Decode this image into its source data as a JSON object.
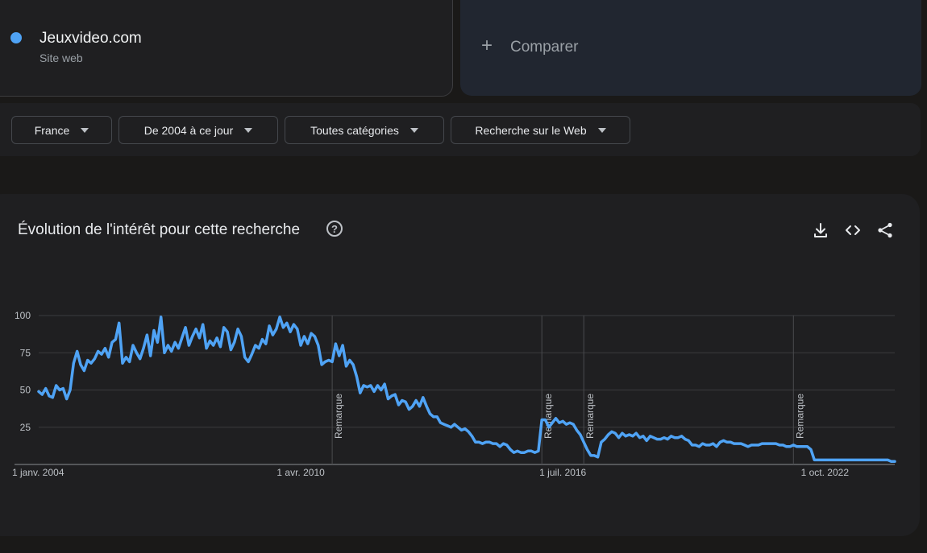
{
  "term": {
    "name": "Jeuxvideo.com",
    "type": "Site web",
    "color": "#4fa3f5"
  },
  "compare": {
    "plus": "+",
    "label": "Comparer"
  },
  "filters": {
    "region": "France",
    "period": "De 2004 à ce jour",
    "category": "Toutes catégories",
    "search_type": "Recherche sur le Web"
  },
  "chart_panel": {
    "title": "Évolution de l'intérêt pour cette recherche",
    "help": "?",
    "icons": [
      "download-icon",
      "embed-icon",
      "share-icon"
    ]
  },
  "chart_data": {
    "type": "line",
    "title": "Évolution de l'intérêt pour cette recherche",
    "xlabel": "",
    "ylabel": "",
    "ylim": [
      0,
      100
    ],
    "yticks": [
      100,
      75,
      50,
      25
    ],
    "xlim": [
      "2004-01",
      "2024-06"
    ],
    "xticks": [
      {
        "date": "2004-01",
        "label": "1 janv. 2004"
      },
      {
        "date": "2010-04",
        "label": "1 avr. 2010"
      },
      {
        "date": "2016-07",
        "label": "1 juil. 2016"
      },
      {
        "date": "2022-10",
        "label": "1 oct. 2022"
      }
    ],
    "annotations": [
      {
        "date": "2011-01",
        "label": "Remarque"
      },
      {
        "date": "2016-01",
        "label": "Remarque"
      },
      {
        "date": "2017-01",
        "label": "Remarque"
      },
      {
        "date": "2022-01",
        "label": "Remarque"
      }
    ],
    "grid": true,
    "color": "#4fa3f5",
    "series": [
      {
        "points": [
          [
            "2004-01",
            49
          ],
          [
            "2004-02",
            47
          ],
          [
            "2004-03",
            51
          ],
          [
            "2004-04",
            46
          ],
          [
            "2004-05",
            45
          ],
          [
            "2004-06",
            53
          ],
          [
            "2004-07",
            50
          ],
          [
            "2004-08",
            51
          ],
          [
            "2004-09",
            44
          ],
          [
            "2004-10",
            50
          ],
          [
            "2004-11",
            68
          ],
          [
            "2004-12",
            76
          ],
          [
            "2005-01",
            67
          ],
          [
            "2005-02",
            63
          ],
          [
            "2005-03",
            70
          ],
          [
            "2005-04",
            68
          ],
          [
            "2005-05",
            71
          ],
          [
            "2005-06",
            76
          ],
          [
            "2005-07",
            74
          ],
          [
            "2005-08",
            78
          ],
          [
            "2005-09",
            72
          ],
          [
            "2005-10",
            82
          ],
          [
            "2005-11",
            84
          ],
          [
            "2005-12",
            95
          ],
          [
            "2006-01",
            68
          ],
          [
            "2006-02",
            72
          ],
          [
            "2006-03",
            69
          ],
          [
            "2006-04",
            80
          ],
          [
            "2006-05",
            75
          ],
          [
            "2006-06",
            71
          ],
          [
            "2006-07",
            78
          ],
          [
            "2006-08",
            87
          ],
          [
            "2006-09",
            73
          ],
          [
            "2006-10",
            90
          ],
          [
            "2006-11",
            82
          ],
          [
            "2006-12",
            99
          ],
          [
            "2007-01",
            75
          ],
          [
            "2007-02",
            80
          ],
          [
            "2007-03",
            76
          ],
          [
            "2007-04",
            82
          ],
          [
            "2007-05",
            78
          ],
          [
            "2007-06",
            85
          ],
          [
            "2007-07",
            92
          ],
          [
            "2007-08",
            80
          ],
          [
            "2007-09",
            86
          ],
          [
            "2007-10",
            91
          ],
          [
            "2007-11",
            85
          ],
          [
            "2007-12",
            94
          ],
          [
            "2008-01",
            78
          ],
          [
            "2008-02",
            83
          ],
          [
            "2008-03",
            80
          ],
          [
            "2008-04",
            85
          ],
          [
            "2008-05",
            79
          ],
          [
            "2008-06",
            92
          ],
          [
            "2008-07",
            89
          ],
          [
            "2008-08",
            77
          ],
          [
            "2008-09",
            82
          ],
          [
            "2008-10",
            91
          ],
          [
            "2008-11",
            86
          ],
          [
            "2008-12",
            72
          ],
          [
            "2009-01",
            69
          ],
          [
            "2009-02",
            74
          ],
          [
            "2009-03",
            80
          ],
          [
            "2009-04",
            78
          ],
          [
            "2009-05",
            84
          ],
          [
            "2009-06",
            81
          ],
          [
            "2009-07",
            93
          ],
          [
            "2009-08",
            87
          ],
          [
            "2009-09",
            91
          ],
          [
            "2009-10",
            99
          ],
          [
            "2009-11",
            92
          ],
          [
            "2009-12",
            95
          ],
          [
            "2010-01",
            89
          ],
          [
            "2010-02",
            94
          ],
          [
            "2010-03",
            91
          ],
          [
            "2010-04",
            80
          ],
          [
            "2010-05",
            86
          ],
          [
            "2010-06",
            81
          ],
          [
            "2010-07",
            88
          ],
          [
            "2010-08",
            86
          ],
          [
            "2010-09",
            80
          ],
          [
            "2010-10",
            67
          ],
          [
            "2010-11",
            69
          ],
          [
            "2010-12",
            70
          ],
          [
            "2011-01",
            69
          ],
          [
            "2011-02",
            81
          ],
          [
            "2011-03",
            73
          ],
          [
            "2011-04",
            80
          ],
          [
            "2011-05",
            66
          ],
          [
            "2011-06",
            70
          ],
          [
            "2011-07",
            67
          ],
          [
            "2011-08",
            59
          ],
          [
            "2011-09",
            48
          ],
          [
            "2011-10",
            53
          ],
          [
            "2011-11",
            52
          ],
          [
            "2011-12",
            53
          ],
          [
            "2012-01",
            49
          ],
          [
            "2012-02",
            53
          ],
          [
            "2012-03",
            50
          ],
          [
            "2012-04",
            54
          ],
          [
            "2012-05",
            44
          ],
          [
            "2012-06",
            46
          ],
          [
            "2012-07",
            47
          ],
          [
            "2012-08",
            40
          ],
          [
            "2012-09",
            43
          ],
          [
            "2012-10",
            42
          ],
          [
            "2012-11",
            37
          ],
          [
            "2012-12",
            39
          ],
          [
            "2013-01",
            43
          ],
          [
            "2013-02",
            39
          ],
          [
            "2013-03",
            45
          ],
          [
            "2013-04",
            39
          ],
          [
            "2013-05",
            34
          ],
          [
            "2013-06",
            32
          ],
          [
            "2013-07",
            32
          ],
          [
            "2013-08",
            28
          ],
          [
            "2013-09",
            27
          ],
          [
            "2013-10",
            26
          ],
          [
            "2013-11",
            25
          ],
          [
            "2013-12",
            27
          ],
          [
            "2014-01",
            25
          ],
          [
            "2014-02",
            23
          ],
          [
            "2014-03",
            24
          ],
          [
            "2014-04",
            22
          ],
          [
            "2014-05",
            19
          ],
          [
            "2014-06",
            15
          ],
          [
            "2014-07",
            15
          ],
          [
            "2014-08",
            14
          ],
          [
            "2014-09",
            15
          ],
          [
            "2014-10",
            15
          ],
          [
            "2014-11",
            14
          ],
          [
            "2014-12",
            14
          ],
          [
            "2015-01",
            12
          ],
          [
            "2015-02",
            14
          ],
          [
            "2015-03",
            13
          ],
          [
            "2015-04",
            10
          ],
          [
            "2015-05",
            8
          ],
          [
            "2015-06",
            9
          ],
          [
            "2015-07",
            8
          ],
          [
            "2015-08",
            8
          ],
          [
            "2015-09",
            9
          ],
          [
            "2015-10",
            9
          ],
          [
            "2015-11",
            8
          ],
          [
            "2015-12",
            9
          ],
          [
            "2016-01",
            30
          ],
          [
            "2016-02",
            30
          ],
          [
            "2016-03",
            25
          ],
          [
            "2016-04",
            28
          ],
          [
            "2016-05",
            31
          ],
          [
            "2016-06",
            28
          ],
          [
            "2016-07",
            29
          ],
          [
            "2016-08",
            27
          ],
          [
            "2016-09",
            28
          ],
          [
            "2016-10",
            27
          ],
          [
            "2016-11",
            23
          ],
          [
            "2016-12",
            20
          ],
          [
            "2017-01",
            15
          ],
          [
            "2017-02",
            10
          ],
          [
            "2017-03",
            6
          ],
          [
            "2017-04",
            6
          ],
          [
            "2017-05",
            5
          ],
          [
            "2017-06",
            15
          ],
          [
            "2017-07",
            17
          ],
          [
            "2017-08",
            20
          ],
          [
            "2017-09",
            22
          ],
          [
            "2017-10",
            21
          ],
          [
            "2017-11",
            18
          ],
          [
            "2017-12",
            21
          ],
          [
            "2018-01",
            19
          ],
          [
            "2018-02",
            20
          ],
          [
            "2018-03",
            19
          ],
          [
            "2018-04",
            21
          ],
          [
            "2018-05",
            18
          ],
          [
            "2018-06",
            19
          ],
          [
            "2018-07",
            16
          ],
          [
            "2018-08",
            19
          ],
          [
            "2018-09",
            18
          ],
          [
            "2018-10",
            17
          ],
          [
            "2018-11",
            17
          ],
          [
            "2018-12",
            18
          ],
          [
            "2019-01",
            17
          ],
          [
            "2019-02",
            19
          ],
          [
            "2019-03",
            18
          ],
          [
            "2019-04",
            18
          ],
          [
            "2019-05",
            19
          ],
          [
            "2019-06",
            17
          ],
          [
            "2019-07",
            16
          ],
          [
            "2019-08",
            13
          ],
          [
            "2019-09",
            13
          ],
          [
            "2019-10",
            12
          ],
          [
            "2019-11",
            14
          ],
          [
            "2019-12",
            13
          ],
          [
            "2020-01",
            13
          ],
          [
            "2020-02",
            14
          ],
          [
            "2020-03",
            12
          ],
          [
            "2020-04",
            15
          ],
          [
            "2020-05",
            16
          ],
          [
            "2020-06",
            15
          ],
          [
            "2020-07",
            15
          ],
          [
            "2020-08",
            14
          ],
          [
            "2020-09",
            14
          ],
          [
            "2020-10",
            14
          ],
          [
            "2020-11",
            13
          ],
          [
            "2020-12",
            12
          ],
          [
            "2021-01",
            13
          ],
          [
            "2021-02",
            13
          ],
          [
            "2021-03",
            13
          ],
          [
            "2021-04",
            14
          ],
          [
            "2021-05",
            14
          ],
          [
            "2021-06",
            14
          ],
          [
            "2021-07",
            14
          ],
          [
            "2021-08",
            14
          ],
          [
            "2021-09",
            13
          ],
          [
            "2021-10",
            13
          ],
          [
            "2021-11",
            12
          ],
          [
            "2021-12",
            12
          ],
          [
            "2022-01",
            13
          ],
          [
            "2022-02",
            12
          ],
          [
            "2022-03",
            12
          ],
          [
            "2022-04",
            12
          ],
          [
            "2022-05",
            12
          ],
          [
            "2022-06",
            10
          ],
          [
            "2022-07",
            3
          ],
          [
            "2022-08",
            3
          ],
          [
            "2022-09",
            3
          ],
          [
            "2022-10",
            3
          ],
          [
            "2022-11",
            3
          ],
          [
            "2022-12",
            3
          ],
          [
            "2023-01",
            3
          ],
          [
            "2023-02",
            3
          ],
          [
            "2023-03",
            3
          ],
          [
            "2023-04",
            3
          ],
          [
            "2023-05",
            3
          ],
          [
            "2023-06",
            3
          ],
          [
            "2023-07",
            3
          ],
          [
            "2023-08",
            3
          ],
          [
            "2023-09",
            3
          ],
          [
            "2023-10",
            3
          ],
          [
            "2023-11",
            3
          ],
          [
            "2023-12",
            3
          ],
          [
            "2024-01",
            3
          ],
          [
            "2024-02",
            3
          ],
          [
            "2024-03",
            3
          ],
          [
            "2024-04",
            3
          ],
          [
            "2024-05",
            2
          ],
          [
            "2024-06",
            2
          ]
        ]
      }
    ]
  }
}
